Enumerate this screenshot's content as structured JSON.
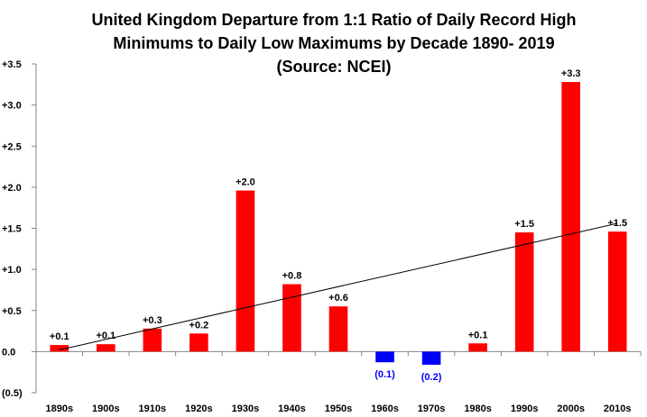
{
  "chart_data": {
    "type": "bar",
    "title_lines": [
      "United Kingdom Departure from 1:1 Ratio of Daily Record High",
      "Minimums to Daily Low Maximums by Decade 1890- 2019",
      "(Source: NCEI)"
    ],
    "categories": [
      "1890s",
      "1900s",
      "1910s",
      "1920s",
      "1930s",
      "1940s",
      "1950s",
      "1960s",
      "1970s",
      "1980s",
      "1990s",
      "2000s",
      "2010s"
    ],
    "values": [
      0.08,
      0.09,
      0.28,
      0.22,
      1.96,
      0.82,
      0.55,
      -0.13,
      -0.16,
      0.1,
      1.45,
      3.28,
      1.46
    ],
    "data_labels": [
      "+0.1",
      "+0.1",
      "+0.3",
      "+0.2",
      "+2.0",
      "+0.8",
      "+0.6",
      "(0.1)",
      "(0.2)",
      "+0.1",
      "+1.5",
      "+3.3",
      "+1.5"
    ],
    "ylim": [
      -0.5,
      3.5
    ],
    "y_ticks": [
      -0.5,
      0.0,
      0.5,
      1.0,
      1.5,
      2.0,
      2.5,
      3.0,
      3.5
    ],
    "y_tick_labels": [
      "(0.5)",
      "0.0",
      "+0.5",
      "+1.0",
      "+1.5",
      "+2.0",
      "+2.5",
      "+3.0",
      "+3.5"
    ],
    "trendline": {
      "type": "linear",
      "start": 0.02,
      "end": 1.56
    },
    "grid": false,
    "legend": "none",
    "colors": {
      "positive": "#ff0000",
      "negative": "#0000ff",
      "negative_label": "#0000ff",
      "positive_label": "#000000",
      "trendline": "#000000",
      "axis": "#868686"
    }
  }
}
